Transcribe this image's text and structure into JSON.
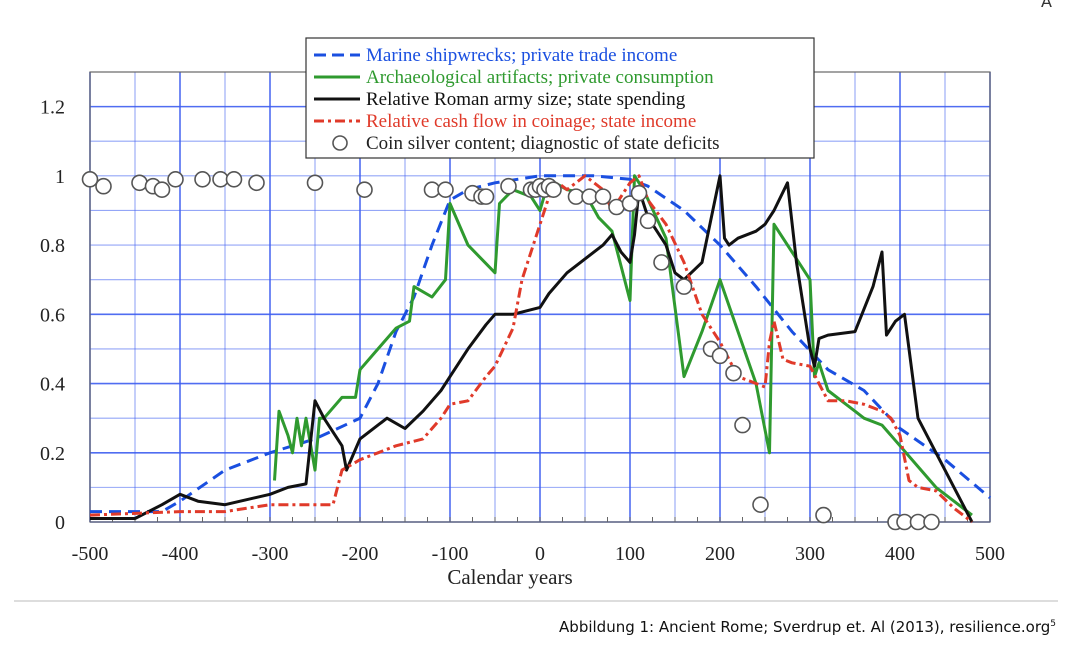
{
  "corner_mark": "A",
  "caption": {
    "text": "Abbildung 1: Ancient Rome; Sverdrup et. Al (2013), resilience.org",
    "footnote": "5"
  },
  "chart_data": {
    "type": "line",
    "xlabel": "Calendar years",
    "ylabel": "",
    "xlim": [
      -500,
      500
    ],
    "ylim": [
      0,
      1.3
    ],
    "xticks": [
      -500,
      -400,
      -300,
      -200,
      -100,
      0,
      100,
      200,
      300,
      400,
      500
    ],
    "xtick_labels": [
      "-500",
      "-400",
      "-300",
      "-200",
      "-100",
      "0",
      "100",
      "200",
      "300",
      "400",
      "500"
    ],
    "yticks": [
      0,
      0.2,
      0.4,
      0.6,
      0.8,
      1,
      1.2
    ],
    "ytick_labels": [
      "0",
      "0.2",
      "0.4",
      "0.6",
      "0.8",
      "1",
      "1.2"
    ],
    "grid": true,
    "grid_color": "#3d5df0",
    "legend_position": "top-center",
    "series": [
      {
        "name": "Marine shipwrecks; private trade income",
        "color": "#1a4fe0",
        "style": "dashed",
        "x": [
          -500,
          -420,
          -400,
          -350,
          -300,
          -250,
          -200,
          -180,
          -160,
          -140,
          -120,
          -100,
          -80,
          -50,
          0,
          20,
          60,
          100,
          120,
          160,
          200,
          240,
          280,
          320,
          360,
          400,
          450,
          500
        ],
        "y": [
          0.03,
          0.03,
          0.06,
          0.15,
          0.2,
          0.24,
          0.3,
          0.4,
          0.55,
          0.65,
          0.8,
          0.93,
          0.96,
          0.98,
          1.0,
          1.0,
          1.0,
          0.99,
          0.97,
          0.9,
          0.8,
          0.68,
          0.55,
          0.44,
          0.38,
          0.27,
          0.18,
          0.07
        ]
      },
      {
        "name": "Archaeological artifacts; private consumption",
        "color": "#2f9a2f",
        "style": "solid",
        "x": [
          -295,
          -290,
          -280,
          -275,
          -270,
          -265,
          -260,
          -250,
          -245,
          -240,
          -220,
          -205,
          -200,
          -180,
          -160,
          -145,
          -140,
          -120,
          -105,
          -100,
          -80,
          -50,
          -45,
          -30,
          -20,
          -10,
          0,
          10,
          30,
          50,
          65,
          80,
          100,
          105,
          115,
          140,
          160,
          180,
          200,
          220,
          240,
          255,
          260,
          280,
          300,
          305,
          310,
          320,
          340,
          350,
          360,
          380,
          400,
          420,
          440,
          460,
          480
        ],
        "y": [
          0.12,
          0.32,
          0.25,
          0.2,
          0.3,
          0.22,
          0.3,
          0.15,
          0.3,
          0.3,
          0.36,
          0.36,
          0.44,
          0.5,
          0.56,
          0.58,
          0.68,
          0.65,
          0.7,
          0.92,
          0.8,
          0.72,
          0.92,
          0.96,
          0.95,
          0.94,
          0.9,
          0.99,
          0.96,
          0.95,
          0.88,
          0.84,
          0.64,
          1.0,
          0.96,
          0.82,
          0.42,
          0.55,
          0.7,
          0.55,
          0.4,
          0.2,
          0.86,
          0.78,
          0.7,
          0.42,
          0.46,
          0.38,
          0.34,
          0.32,
          0.3,
          0.28,
          0.22,
          0.16,
          0.1,
          0.06,
          0.02
        ]
      },
      {
        "name": "Relative Roman army size; state spending",
        "color": "#111111",
        "style": "solid",
        "x": [
          -500,
          -450,
          -420,
          -400,
          -380,
          -350,
          -300,
          -280,
          -260,
          -250,
          -240,
          -220,
          -215,
          -200,
          -180,
          -170,
          -150,
          -130,
          -110,
          -100,
          -80,
          -60,
          -50,
          -30,
          0,
          10,
          30,
          50,
          70,
          80,
          90,
          100,
          105,
          110,
          120,
          140,
          150,
          160,
          180,
          200,
          205,
          210,
          220,
          240,
          250,
          260,
          275,
          285,
          300,
          305,
          310,
          320,
          350,
          370,
          380,
          385,
          395,
          405,
          420,
          440,
          460,
          480
        ],
        "y": [
          0.01,
          0.01,
          0.05,
          0.08,
          0.06,
          0.05,
          0.08,
          0.1,
          0.11,
          0.35,
          0.3,
          0.22,
          0.15,
          0.24,
          0.28,
          0.3,
          0.27,
          0.32,
          0.38,
          0.42,
          0.5,
          0.57,
          0.6,
          0.6,
          0.62,
          0.66,
          0.72,
          0.76,
          0.8,
          0.83,
          0.78,
          0.75,
          0.83,
          0.96,
          0.88,
          0.8,
          0.72,
          0.7,
          0.75,
          1.0,
          0.82,
          0.8,
          0.82,
          0.84,
          0.86,
          0.9,
          0.98,
          0.75,
          0.5,
          0.45,
          0.53,
          0.54,
          0.55,
          0.68,
          0.78,
          0.54,
          0.58,
          0.6,
          0.3,
          0.2,
          0.1,
          0.0
        ]
      },
      {
        "name": "Relative cash flow in coinage; state income",
        "color": "#e03a2a",
        "style": "dashdot",
        "x": [
          -500,
          -400,
          -350,
          -300,
          -250,
          -230,
          -220,
          -200,
          -180,
          -160,
          -130,
          -110,
          -100,
          -80,
          -60,
          -50,
          -30,
          -20,
          0,
          10,
          20,
          30,
          50,
          70,
          80,
          100,
          110,
          120,
          140,
          160,
          180,
          200,
          220,
          240,
          250,
          255,
          260,
          270,
          280,
          300,
          320,
          340,
          360,
          380,
          390,
          400,
          410,
          420,
          440,
          460,
          480
        ],
        "y": [
          0.02,
          0.03,
          0.03,
          0.05,
          0.05,
          0.05,
          0.15,
          0.18,
          0.2,
          0.22,
          0.24,
          0.3,
          0.34,
          0.35,
          0.42,
          0.45,
          0.56,
          0.7,
          0.86,
          0.94,
          0.98,
          0.96,
          1.0,
          0.96,
          0.9,
          0.98,
          1.0,
          0.93,
          0.86,
          0.75,
          0.6,
          0.52,
          0.42,
          0.4,
          0.39,
          0.52,
          0.58,
          0.47,
          0.46,
          0.45,
          0.35,
          0.35,
          0.34,
          0.32,
          0.3,
          0.25,
          0.12,
          0.1,
          0.09,
          0.04,
          0.0
        ]
      },
      {
        "name": "Coin silver content; diagnostic of state deficits",
        "color": "#555555",
        "style": "markers",
        "x": [
          -500,
          -485,
          -445,
          -430,
          -420,
          -405,
          -375,
          -355,
          -340,
          -315,
          -250,
          -195,
          -120,
          -105,
          -75,
          -65,
          -60,
          -35,
          -10,
          -5,
          0,
          5,
          10,
          15,
          40,
          55,
          70,
          85,
          100,
          110,
          120,
          135,
          160,
          190,
          200,
          215,
          225,
          245,
          315,
          395,
          405,
          420,
          435
        ],
        "y": [
          0.99,
          0.97,
          0.98,
          0.97,
          0.96,
          0.99,
          0.99,
          0.99,
          0.99,
          0.98,
          0.98,
          0.96,
          0.96,
          0.96,
          0.95,
          0.94,
          0.94,
          0.97,
          0.96,
          0.96,
          0.97,
          0.96,
          0.97,
          0.96,
          0.94,
          0.94,
          0.94,
          0.91,
          0.92,
          0.95,
          0.87,
          0.75,
          0.68,
          0.5,
          0.48,
          0.43,
          0.28,
          0.05,
          0.02,
          0.0,
          0.0,
          0.0,
          0.0
        ]
      }
    ]
  }
}
